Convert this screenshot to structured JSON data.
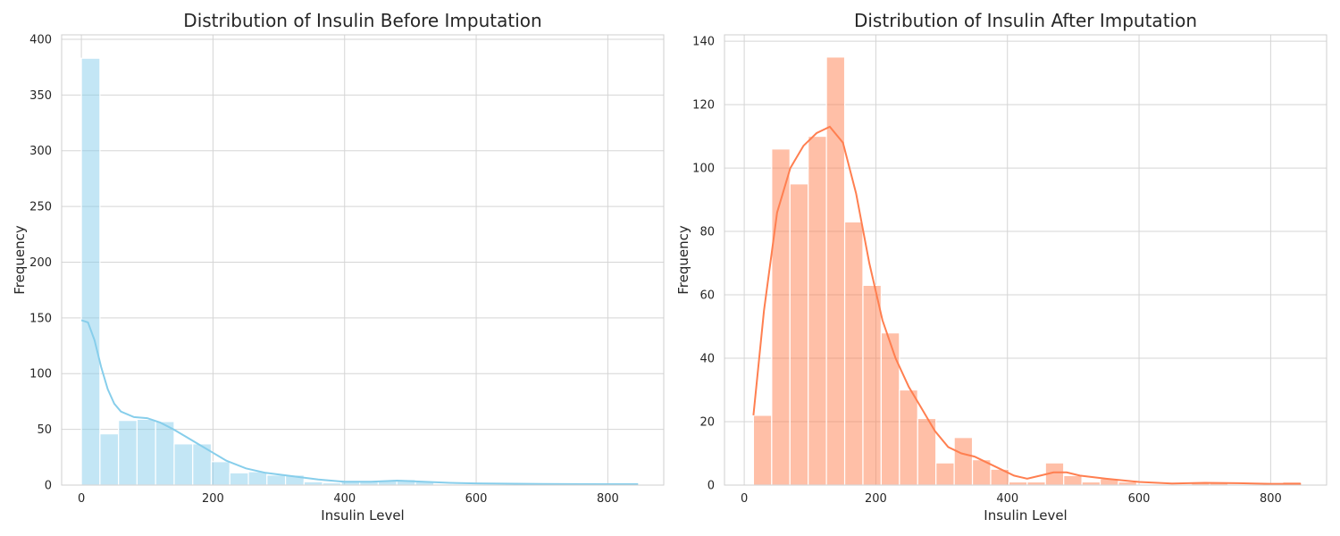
{
  "chart_data": [
    {
      "type": "bar",
      "title": "Distribution of Insulin Before Imputation",
      "xlabel": "Insulin Level",
      "ylabel": "Frequency",
      "xlim": [
        -30,
        885
      ],
      "ylim": [
        0,
        404
      ],
      "xticks": [
        0,
        200,
        400,
        600,
        800
      ],
      "yticks": [
        0,
        50,
        100,
        150,
        200,
        250,
        300,
        350,
        400
      ],
      "grid": true,
      "bar_color": "#87CEEB",
      "bin_width": 28.2,
      "bins_start": [
        0,
        28.2,
        56.4,
        84.6,
        112.8,
        141,
        169.2,
        197.4,
        225.6,
        253.8,
        282,
        310.2,
        338.4,
        366.6,
        394.8,
        423,
        451.2,
        479.4,
        507.6,
        535.8,
        564,
        592.2,
        620.4,
        648.6,
        676.8,
        705,
        733.2,
        761.4,
        789.6,
        817.8
      ],
      "values": [
        383,
        46,
        58,
        59,
        57,
        37,
        37,
        21,
        11,
        12,
        9,
        9,
        3,
        2,
        3,
        3,
        4,
        5,
        3,
        1,
        1,
        1,
        0,
        1,
        1,
        0,
        0,
        0,
        0,
        1
      ],
      "kde": {
        "x": [
          0,
          10,
          20,
          30,
          40,
          50,
          60,
          80,
          100,
          120,
          140,
          160,
          180,
          200,
          220,
          250,
          280,
          320,
          360,
          400,
          440,
          480,
          520,
          560,
          600,
          700,
          800,
          846
        ],
        "y": [
          148,
          146,
          130,
          106,
          86,
          73,
          66,
          61,
          60,
          56,
          50,
          43,
          36,
          29,
          22,
          15,
          11,
          8,
          5,
          3,
          3,
          4,
          3,
          2,
          1.5,
          1,
          0.8,
          0.8
        ]
      }
    },
    {
      "type": "bar",
      "title": "Distribution of Insulin After Imputation",
      "xlabel": "Insulin Level",
      "ylabel": "Frequency",
      "xlim": [
        -30,
        885
      ],
      "ylim": [
        0,
        142
      ],
      "xticks": [
        0,
        200,
        400,
        600,
        800
      ],
      "yticks": [
        0,
        20,
        40,
        60,
        80,
        100,
        120,
        140
      ],
      "grid": true,
      "bar_color": "#FF7F50",
      "bin_width": 27.73,
      "bins_start": [
        14,
        41.73,
        69.47,
        97.2,
        124.93,
        152.67,
        180.4,
        208.13,
        235.87,
        263.6,
        291.33,
        319.07,
        346.8,
        374.53,
        402.27,
        430,
        457.73,
        485.47,
        513.2,
        540.93,
        568.67,
        596.4,
        624.13,
        651.87,
        679.6,
        707.33,
        735.07,
        762.8,
        790.53,
        818.27
      ],
      "values": [
        22,
        106,
        95,
        110,
        135,
        83,
        63,
        48,
        30,
        21,
        7,
        15,
        8,
        5,
        1,
        1,
        7,
        3,
        1,
        2,
        1,
        0,
        0,
        0,
        1,
        1,
        0,
        0,
        0,
        1
      ],
      "kde": {
        "x": [
          14,
          30,
          50,
          70,
          90,
          110,
          130,
          150,
          170,
          190,
          210,
          230,
          250,
          270,
          290,
          310,
          330,
          350,
          370,
          390,
          410,
          430,
          450,
          470,
          490,
          510,
          550,
          600,
          650,
          700,
          750,
          800,
          846
        ],
        "y": [
          22,
          55,
          86,
          100,
          107,
          111,
          113,
          108,
          92,
          70,
          52,
          40,
          31,
          24,
          17,
          12,
          10,
          9,
          7,
          5,
          3,
          2,
          3,
          4,
          4,
          3,
          2,
          1,
          0.5,
          0.7,
          0.6,
          0.4,
          0.4
        ]
      }
    }
  ]
}
